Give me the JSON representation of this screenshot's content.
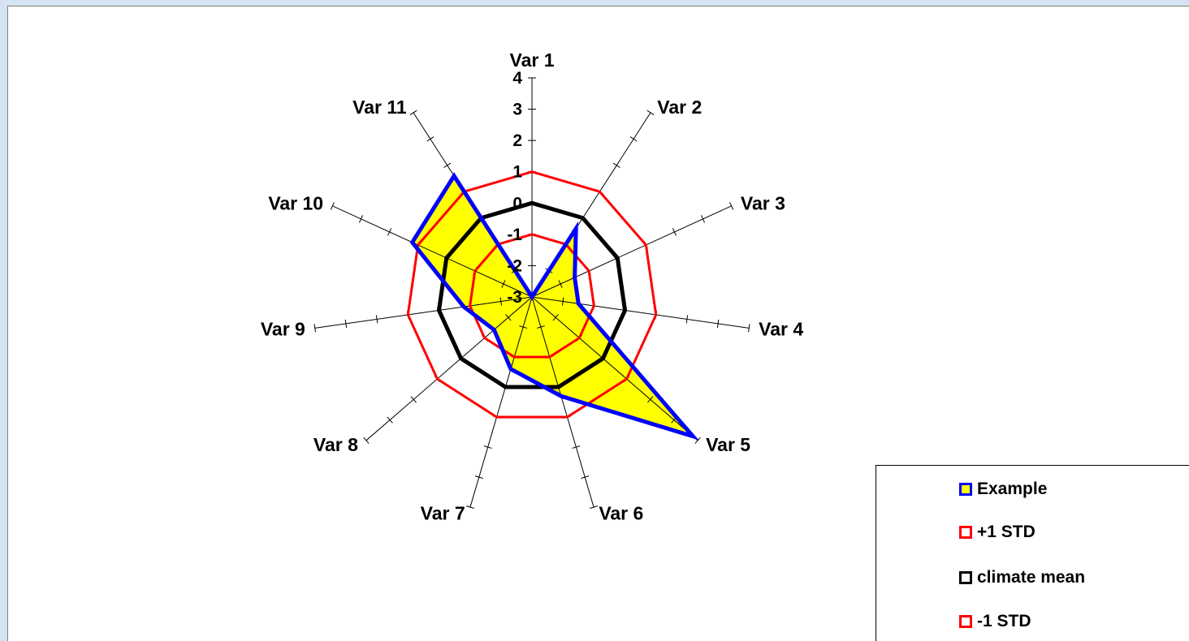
{
  "chart_data": {
    "type": "radar",
    "categories": [
      "Var 1",
      "Var 2",
      "Var 3",
      "Var 4",
      "Var 5",
      "Var 6",
      "Var 7",
      "Var 8",
      "Var 9",
      "Var 10",
      "Var 11"
    ],
    "axis": {
      "min": -3,
      "max": 4,
      "major_unit": 1,
      "tick_labels": [
        "-3",
        "-2",
        "-1",
        "0",
        "1",
        "2",
        "3",
        "4"
      ]
    },
    "series": [
      {
        "name": "Example",
        "color": "#0000ff",
        "fill": "#ffff00",
        "values": [
          -3,
          -0.4,
          -1.5,
          -1.5,
          3.8,
          0.3,
          -0.6,
          -1.4,
          -0.8,
          1.2,
          1.6
        ]
      },
      {
        "name": "+1 STD",
        "color": "#ff0000",
        "values": [
          1,
          1,
          1,
          1,
          1,
          1,
          1,
          1,
          1,
          1,
          1
        ]
      },
      {
        "name": "climate mean",
        "color": "#000000",
        "values": [
          0,
          0,
          0,
          0,
          0,
          0,
          0,
          0,
          0,
          0,
          0
        ]
      },
      {
        "name": "-1 STD",
        "color": "#ff0000",
        "values": [
          -1,
          -1,
          -1,
          -1,
          -1,
          -1,
          -1,
          -1,
          -1,
          -1,
          -1
        ]
      }
    ],
    "legend_position": "right"
  }
}
